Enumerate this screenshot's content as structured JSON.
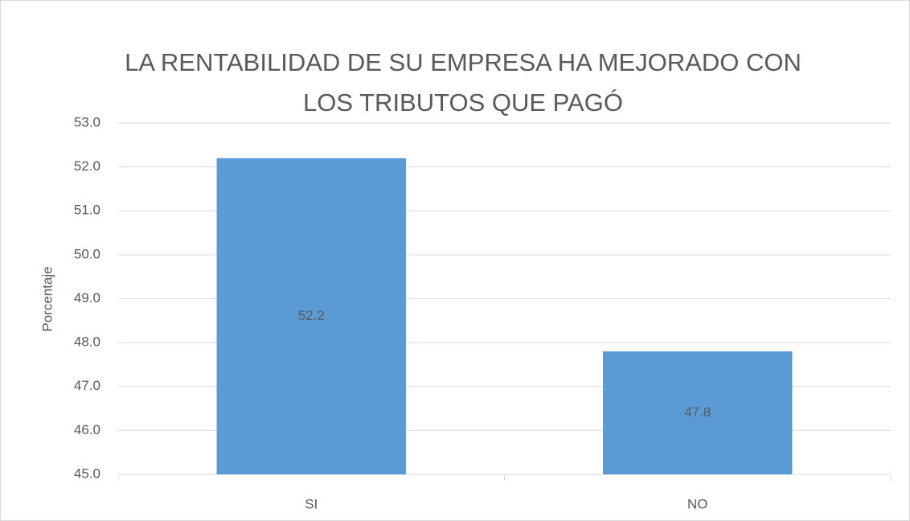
{
  "chart_data": {
    "type": "bar",
    "title": [
      "LA RENTABILIDAD DE SU EMPRESA HA MEJORADO CON",
      "LOS TRIBUTOS QUE PAGÓ"
    ],
    "y_label": "Porcentaje",
    "categories": [
      "SI",
      "NO"
    ],
    "values": [
      52.2,
      47.8
    ],
    "color": "#5b9bd5",
    "ylim": [
      45,
      53
    ],
    "yticks": [
      {
        "value": 45,
        "label": "45.0"
      },
      {
        "value": 46,
        "label": "46.0"
      },
      {
        "value": 47,
        "label": "47.0"
      },
      {
        "value": 48,
        "label": "48.0"
      },
      {
        "value": 49,
        "label": "49.0"
      },
      {
        "value": 50,
        "label": "50.0"
      },
      {
        "value": 51,
        "label": "51.0"
      },
      {
        "value": 52,
        "label": "52.0"
      },
      {
        "value": 53,
        "label": "53.0"
      }
    ],
    "grid": true
  }
}
